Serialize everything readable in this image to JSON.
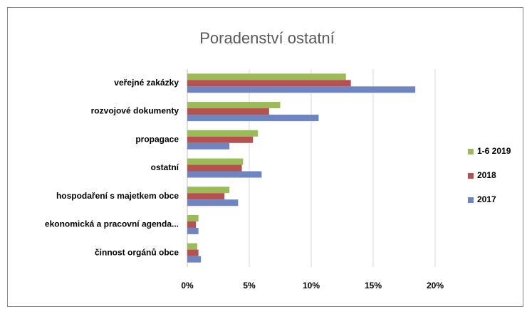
{
  "chart_data": {
    "type": "hbar",
    "title": "Poradenství ostatní",
    "categories": [
      "veřejné zakázky",
      "rozvojové dokumenty",
      "propagace",
      "ostatní",
      "hospodaření s majetkem obce",
      "ekonomická a pracovní agenda...",
      "činnost orgánů obce"
    ],
    "series": [
      {
        "name": "1-6 2019",
        "color": "#9bbb59",
        "values": [
          12.8,
          7.5,
          5.7,
          4.5,
          3.4,
          0.9,
          0.8
        ]
      },
      {
        "name": "2018",
        "color": "#b65150",
        "values": [
          13.2,
          6.6,
          5.3,
          4.4,
          3.0,
          0.7,
          0.9
        ]
      },
      {
        "name": "2017",
        "color": "#6f85bf",
        "values": [
          18.4,
          10.6,
          3.4,
          6.0,
          4.1,
          0.9,
          1.1
        ]
      }
    ],
    "xlim": [
      0,
      20
    ],
    "xticks": [
      {
        "value": 0,
        "label": "0%"
      },
      {
        "value": 5,
        "label": "5%"
      },
      {
        "value": 10,
        "label": "10%"
      },
      {
        "value": 15,
        "label": "15%"
      },
      {
        "value": 20,
        "label": "20%"
      }
    ],
    "grid": true,
    "legend": "right"
  }
}
